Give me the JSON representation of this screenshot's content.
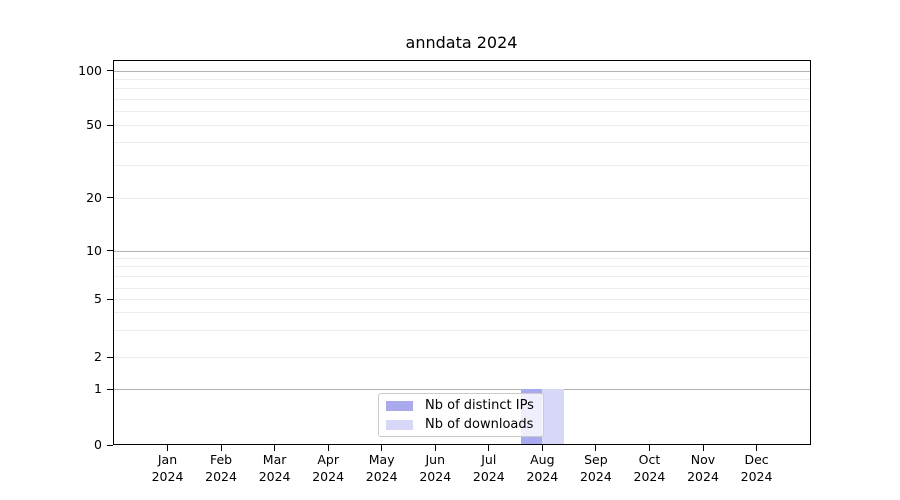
{
  "chart_data": {
    "type": "bar",
    "title": "anndata 2024",
    "categories": [
      "Jan",
      "Feb",
      "Mar",
      "Apr",
      "May",
      "Jun",
      "Jul",
      "Aug",
      "Sep",
      "Oct",
      "Nov",
      "Dec"
    ],
    "x_sublabel": "2024",
    "series": [
      {
        "name": "Nb of distinct IPs",
        "color": "#a9a9ee",
        "values": [
          0,
          0,
          0,
          0,
          0,
          0,
          0,
          1,
          0,
          0,
          0,
          0
        ]
      },
      {
        "name": "Nb of downloads",
        "color": "#d7d7f7",
        "values": [
          0,
          0,
          0,
          0,
          0,
          0,
          0,
          1,
          0,
          0,
          0,
          0
        ]
      }
    ],
    "y_axis": {
      "scale": "symlog",
      "ticks": [
        100,
        50,
        20,
        10,
        5,
        2,
        1,
        0
      ],
      "ylim": [
        0,
        115
      ]
    },
    "xlabel": "",
    "ylabel": "",
    "grid": true,
    "legend": {
      "position": "lower center",
      "entries": [
        "Nb of distinct IPs",
        "Nb of downloads"
      ]
    }
  }
}
